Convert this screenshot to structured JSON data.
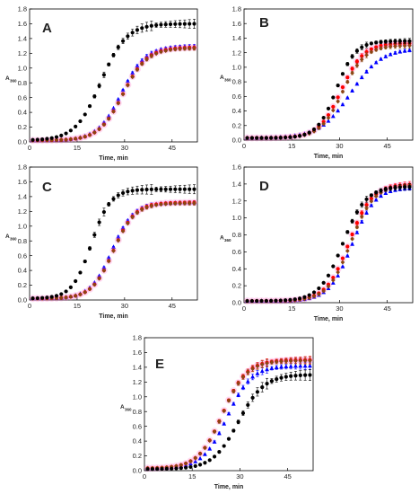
{
  "figure": {
    "series_colors": [
      "#000000",
      "#ff0000",
      "#8b4513",
      "#0000ff"
    ],
    "marker_shapes": [
      "circle",
      "circle",
      "diamond",
      "triangle"
    ],
    "halo_color": "#ff66cc"
  },
  "chart_data": [
    {
      "type": "scatter",
      "panel_label": "A",
      "xlabel": "Time, min",
      "ylabel": "A",
      "ylabel_sub": "360",
      "xlim": [
        0,
        53
      ],
      "ylim": [
        0,
        1.8
      ],
      "xticks": [
        0,
        15,
        30,
        45
      ],
      "yticks": [
        0.0,
        0.2,
        0.4,
        0.6,
        0.8,
        1.0,
        1.2,
        1.4,
        1.6,
        1.8
      ],
      "grid": false,
      "error_bars": true,
      "series": [
        {
          "kind": "sigmoid",
          "base": 0.02,
          "top": 1.6,
          "t0": 22.5,
          "tau": 4.0,
          "err": 0.05
        },
        {
          "kind": "sigmoid",
          "base": 0.02,
          "top": 1.28,
          "t0": 29.5,
          "tau": 3.8,
          "err": 0.02
        },
        {
          "kind": "sigmoid",
          "base": 0.02,
          "top": 1.27,
          "t0": 29.5,
          "tau": 3.8,
          "err": 0.02
        },
        {
          "kind": "sigmoid",
          "base": 0.02,
          "top": 1.3,
          "t0": 29.0,
          "tau": 3.8,
          "err": 0.02
        }
      ]
    },
    {
      "type": "scatter",
      "panel_label": "B",
      "xlabel": "Time, min",
      "ylabel": "A",
      "ylabel_sub": "360",
      "xlim": [
        0,
        53
      ],
      "ylim": [
        0,
        1.8
      ],
      "xticks": [
        0,
        15,
        30,
        45
      ],
      "yticks": [
        0.0,
        0.2,
        0.4,
        0.6,
        0.8,
        1.0,
        1.2,
        1.4,
        1.6,
        1.8
      ],
      "grid": false,
      "error_bars": true,
      "series": [
        {
          "kind": "sigmoid",
          "base": 0.03,
          "top": 1.36,
          "t0": 29.0,
          "tau": 3.0,
          "err": 0.03
        },
        {
          "kind": "sigmoid",
          "base": 0.03,
          "top": 1.33,
          "t0": 30.5,
          "tau": 3.5,
          "err": 0.03
        },
        {
          "kind": "sigmoid",
          "base": 0.03,
          "top": 1.3,
          "t0": 31.0,
          "tau": 3.5,
          "err": 0.03
        },
        {
          "kind": "sigmoid",
          "base": 0.03,
          "top": 1.26,
          "t0": 33.5,
          "tau": 4.8,
          "err": 0.02
        }
      ]
    },
    {
      "type": "scatter",
      "panel_label": "C",
      "xlabel": "Time, min",
      "ylabel": "A",
      "ylabel_sub": "360",
      "xlim": [
        0,
        53
      ],
      "ylim": [
        0,
        1.8
      ],
      "xticks": [
        0,
        15,
        30,
        45
      ],
      "yticks": [
        0.0,
        0.2,
        0.4,
        0.6,
        0.8,
        1.0,
        1.2,
        1.4,
        1.6,
        1.8
      ],
      "grid": false,
      "error_bars": true,
      "series": [
        {
          "kind": "sigmoid",
          "base": 0.02,
          "top": 1.5,
          "t0": 19.5,
          "tau": 3.0,
          "err": 0.05
        },
        {
          "kind": "sigmoid",
          "base": 0.02,
          "top": 1.32,
          "t0": 26.5,
          "tau": 3.4,
          "err": 0.02
        },
        {
          "kind": "sigmoid",
          "base": 0.02,
          "top": 1.31,
          "t0": 26.5,
          "tau": 3.4,
          "err": 0.02
        },
        {
          "kind": "sigmoid",
          "base": 0.02,
          "top": 1.32,
          "t0": 26.0,
          "tau": 3.4,
          "err": 0.02
        }
      ]
    },
    {
      "type": "scatter",
      "panel_label": "D",
      "xlabel": "Time, min",
      "ylabel": "A",
      "ylabel_sub": "360",
      "xlim": [
        0,
        53
      ],
      "ylim": [
        0,
        1.6
      ],
      "xticks": [
        0,
        15,
        30,
        45
      ],
      "yticks": [
        0.0,
        0.2,
        0.4,
        0.6,
        0.8,
        1.0,
        1.2,
        1.4,
        1.6
      ],
      "grid": false,
      "error_bars": true,
      "series": [
        {
          "kind": "sigmoid",
          "base": 0.02,
          "top": 1.37,
          "t0": 31.0,
          "tau": 3.6,
          "err": 0.03
        },
        {
          "kind": "sigmoid",
          "base": 0.02,
          "top": 1.4,
          "t0": 33.0,
          "tau": 3.6,
          "err": 0.03
        },
        {
          "kind": "sigmoid",
          "base": 0.02,
          "top": 1.39,
          "t0": 33.5,
          "tau": 3.6,
          "err": 0.02
        },
        {
          "kind": "sigmoid",
          "base": 0.02,
          "top": 1.36,
          "t0": 34.0,
          "tau": 3.6,
          "err": 0.02
        }
      ]
    },
    {
      "type": "scatter",
      "panel_label": "E",
      "xlabel": "Time, min",
      "ylabel": "A",
      "ylabel_sub": "360",
      "xlim": [
        0,
        53
      ],
      "ylim": [
        0,
        1.8
      ],
      "xticks": [
        0,
        15,
        30,
        45
      ],
      "yticks": [
        0.0,
        0.2,
        0.4,
        0.6,
        0.8,
        1.0,
        1.2,
        1.4,
        1.6,
        1.8
      ],
      "grid": false,
      "error_bars": true,
      "series": [
        {
          "kind": "sigmoid",
          "base": 0.02,
          "top": 1.3,
          "t0": 29.5,
          "tau": 4.0,
          "err": 0.06
        },
        {
          "kind": "sigmoid",
          "base": 0.03,
          "top": 1.5,
          "t0": 24.5,
          "tau": 3.8,
          "err": 0.04
        },
        {
          "kind": "sigmoid",
          "base": 0.03,
          "top": 1.49,
          "t0": 24.5,
          "tau": 3.8,
          "err": 0.04
        },
        {
          "kind": "sigmoid",
          "base": 0.03,
          "top": 1.42,
          "t0": 26.0,
          "tau": 3.8,
          "err": 0.04
        }
      ]
    }
  ]
}
